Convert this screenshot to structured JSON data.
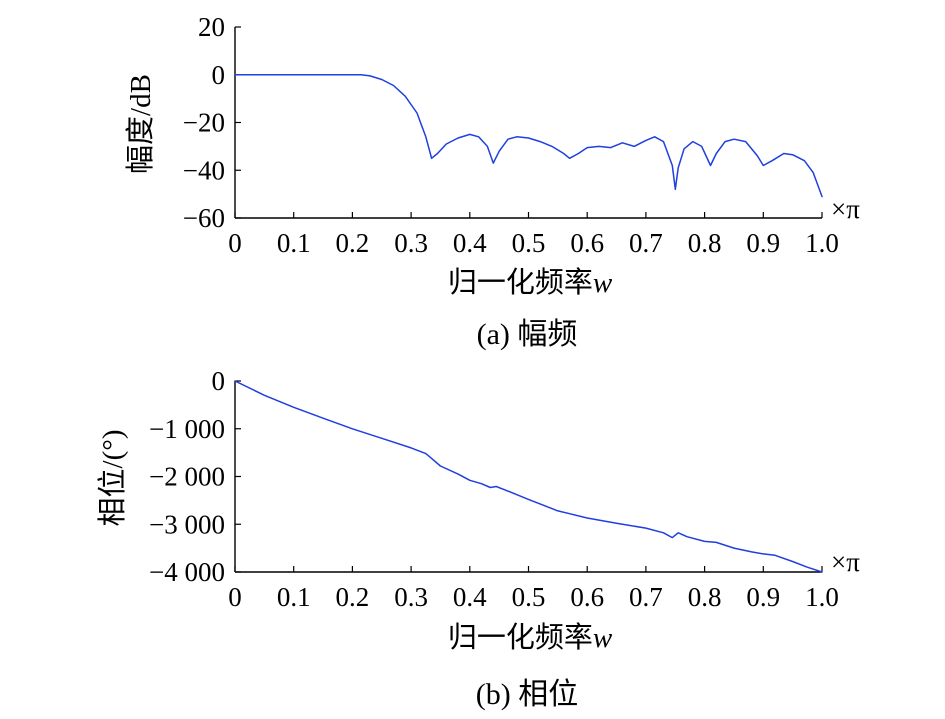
{
  "colors": {
    "series": "#1f3fe0",
    "axis": "#000000",
    "background": "#ffffff"
  },
  "chart_data": [
    {
      "id": "magnitude",
      "type": "line",
      "caption": "(a) 幅频",
      "xlabel_text": "归一化频率",
      "xlabel_var": "w",
      "ylabel": "幅度/dB",
      "x_unit": "×π",
      "xlim": [
        0,
        1.0
      ],
      "ylim": [
        -60,
        20
      ],
      "xticks": [
        0,
        0.1,
        0.2,
        0.3,
        0.4,
        0.5,
        0.6,
        0.7,
        0.8,
        0.9,
        1.0
      ],
      "xtick_labels": [
        "0",
        "0.1",
        "0.2",
        "0.3",
        "0.4",
        "0.5",
        "0.6",
        "0.7",
        "0.8",
        "0.9",
        "1.0"
      ],
      "yticks": [
        20,
        0,
        -20,
        -40,
        -60
      ],
      "ytick_labels": [
        "20",
        "0",
        "−20",
        "−40",
        "−60"
      ],
      "grid": false,
      "x": [
        0,
        0.05,
        0.1,
        0.15,
        0.2,
        0.215,
        0.23,
        0.25,
        0.27,
        0.29,
        0.31,
        0.325,
        0.335,
        0.345,
        0.36,
        0.38,
        0.4,
        0.415,
        0.43,
        0.44,
        0.45,
        0.465,
        0.48,
        0.5,
        0.52,
        0.54,
        0.56,
        0.57,
        0.585,
        0.6,
        0.62,
        0.64,
        0.66,
        0.68,
        0.7,
        0.715,
        0.73,
        0.745,
        0.75,
        0.755,
        0.765,
        0.78,
        0.795,
        0.81,
        0.82,
        0.835,
        0.85,
        0.87,
        0.89,
        0.9,
        0.915,
        0.935,
        0.95,
        0.97,
        0.985,
        1.0
      ],
      "y": [
        0,
        0,
        0,
        0,
        0,
        0,
        -0.5,
        -2,
        -4.5,
        -9,
        -16,
        -26,
        -35,
        -33,
        -29,
        -26.5,
        -25,
        -26,
        -30,
        -37,
        -32,
        -27,
        -26,
        -26.5,
        -28,
        -30,
        -33,
        -35,
        -33,
        -30.5,
        -30,
        -30.5,
        -28.5,
        -30,
        -27.5,
        -26,
        -28,
        -38,
        -48,
        -39,
        -31,
        -28,
        -30,
        -38,
        -33,
        -28,
        -27,
        -28,
        -34,
        -38,
        -36,
        -33,
        -33.5,
        -36,
        -41,
        -51
      ]
    },
    {
      "id": "phase",
      "type": "line",
      "caption": "(b) 相位",
      "xlabel_text": "归一化频率",
      "xlabel_var": "w",
      "ylabel": "相位/(°)",
      "x_unit": "×π",
      "xlim": [
        0,
        1.0
      ],
      "ylim": [
        -4000,
        0
      ],
      "xticks": [
        0,
        0.1,
        0.2,
        0.3,
        0.4,
        0.5,
        0.6,
        0.7,
        0.8,
        0.9,
        1.0
      ],
      "xtick_labels": [
        "0",
        "0.1",
        "0.2",
        "0.3",
        "0.4",
        "0.5",
        "0.6",
        "0.7",
        "0.8",
        "0.9",
        "1.0"
      ],
      "yticks": [
        0,
        -1000,
        -2000,
        -3000,
        -4000
      ],
      "ytick_labels": [
        "0",
        "−1 000",
        "−2 000",
        "−3 000",
        "−4 000"
      ],
      "grid": false,
      "x": [
        0,
        0.05,
        0.1,
        0.15,
        0.2,
        0.25,
        0.3,
        0.325,
        0.335,
        0.35,
        0.38,
        0.4,
        0.42,
        0.435,
        0.445,
        0.46,
        0.5,
        0.55,
        0.57,
        0.6,
        0.65,
        0.7,
        0.73,
        0.745,
        0.755,
        0.77,
        0.8,
        0.82,
        0.85,
        0.88,
        0.9,
        0.92,
        0.95,
        0.975,
        1.0
      ],
      "y": [
        0,
        -300,
        -550,
        -780,
        -1000,
        -1200,
        -1400,
        -1520,
        -1620,
        -1780,
        -1950,
        -2080,
        -2150,
        -2230,
        -2210,
        -2280,
        -2480,
        -2720,
        -2780,
        -2870,
        -2980,
        -3080,
        -3180,
        -3280,
        -3180,
        -3260,
        -3360,
        -3380,
        -3500,
        -3580,
        -3620,
        -3650,
        -3780,
        -3900,
        -4000
      ]
    }
  ]
}
